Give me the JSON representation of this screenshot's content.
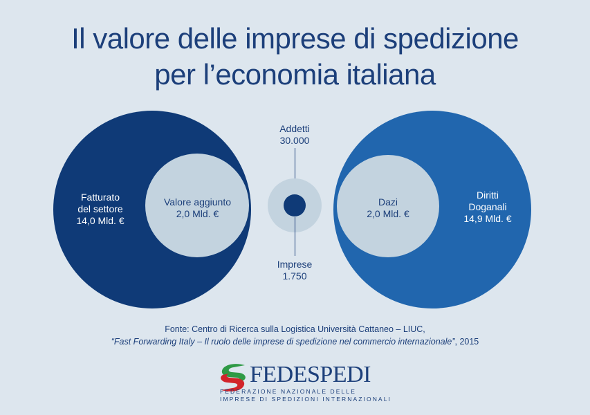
{
  "title": {
    "line1": "Il valore delle imprese di spedizione",
    "line2": "per l’economia italiana"
  },
  "left": {
    "outer": {
      "line1": "Fatturato",
      "line2": "del settore",
      "line3": "14,0 Mld. €"
    },
    "inner": {
      "line1": "Valore aggiunto",
      "line2": "2,0 Mld. €"
    }
  },
  "center": {
    "top": {
      "line1": "Addetti",
      "line2": "30.000"
    },
    "bottom": {
      "line1": "Imprese",
      "line2": "1.750"
    }
  },
  "right": {
    "inner": {
      "line1": "Dazi",
      "line2": "2,0 Mld. €"
    },
    "outer": {
      "line1": "Diritti",
      "line2": "Doganali",
      "line3": "14,9 Mld. €"
    }
  },
  "source": {
    "line1": "Fonte: Centro di Ricerca sulla Logistica Università Cattaneo – LIUC,",
    "line2_italic": "“Fast Forwarding Italy – Il ruolo delle imprese di spedizione nel commercio internazionale”",
    "line2_rest": ", 2015"
  },
  "logo": {
    "name": "FEDESPEDI",
    "sub1": "FEDERAZIONE NAZIONALE DELLE",
    "sub2": "IMPRESE DI SPEDIZIONI INTERNAZIONALI"
  },
  "colors": {
    "background": "#dde6ee",
    "dark_navy": "#0f3a77",
    "medium_blue": "#2166ae",
    "light_circle": "#c3d3df",
    "title_text": "#1c3f7a",
    "logo_green": "#2e9a45",
    "logo_red": "#d2232a"
  }
}
